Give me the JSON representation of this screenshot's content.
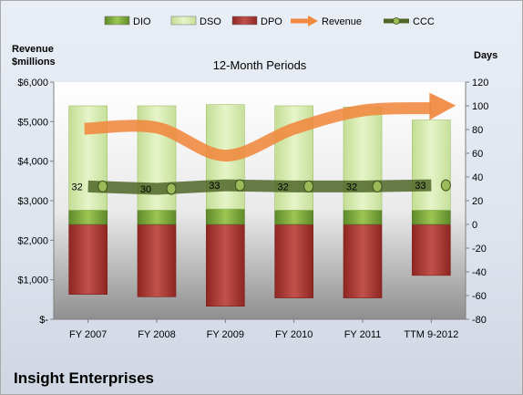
{
  "chart_data": {
    "type": "bar",
    "title": "12-Month Periods",
    "company": "Insight Enterprises",
    "left_axis": {
      "label": [
        "Revenue",
        "$millions"
      ],
      "ticks": [
        "$-",
        "$1,000",
        "$2,000",
        "$3,000",
        "$4,000",
        "$5,000",
        "$6,000"
      ],
      "range": [
        0,
        6000
      ]
    },
    "right_axis": {
      "label": "Days",
      "ticks": [
        "-80",
        "-60",
        "-40",
        "-20",
        "0",
        "20",
        "40",
        "60",
        "80",
        "100",
        "120"
      ],
      "range": [
        -80,
        120
      ]
    },
    "categories": [
      "FY 2007",
      "FY 2008",
      "FY 2009",
      "FY 2010",
      "FY 2011",
      "TTM 9-2012"
    ],
    "legend_position": "top",
    "legend": [
      {
        "name": "DIO",
        "kind": "bar",
        "color": "#77a33a"
      },
      {
        "name": "DSO",
        "kind": "bar",
        "color": "#d3eab0"
      },
      {
        "name": "DPO",
        "kind": "bar",
        "color": "#b03a35"
      },
      {
        "name": "Revenue",
        "kind": "line",
        "color": "#f0883e"
      },
      {
        "name": "CCC",
        "kind": "line",
        "color": "#4f6628"
      }
    ],
    "series": [
      {
        "name": "DIO",
        "axis": "days",
        "values": [
          12,
          12,
          13,
          12,
          12,
          12
        ]
      },
      {
        "name": "DSO",
        "axis": "days",
        "values": [
          88,
          88,
          88,
          88,
          87,
          76
        ]
      },
      {
        "name": "DPO",
        "axis": "days",
        "values": [
          -59,
          -61,
          -69,
          -62,
          -62,
          -43
        ]
      },
      {
        "name": "Revenue",
        "axis": "revenue",
        "values": [
          4820,
          4850,
          4140,
          4820,
          5280,
          5340
        ]
      },
      {
        "name": "CCC",
        "axis": "days",
        "values": [
          32,
          30,
          33,
          32,
          32,
          33
        ]
      }
    ],
    "ccc_labels": [
      "32",
      "30",
      "33",
      "32",
      "32",
      "33"
    ],
    "grid": false
  }
}
